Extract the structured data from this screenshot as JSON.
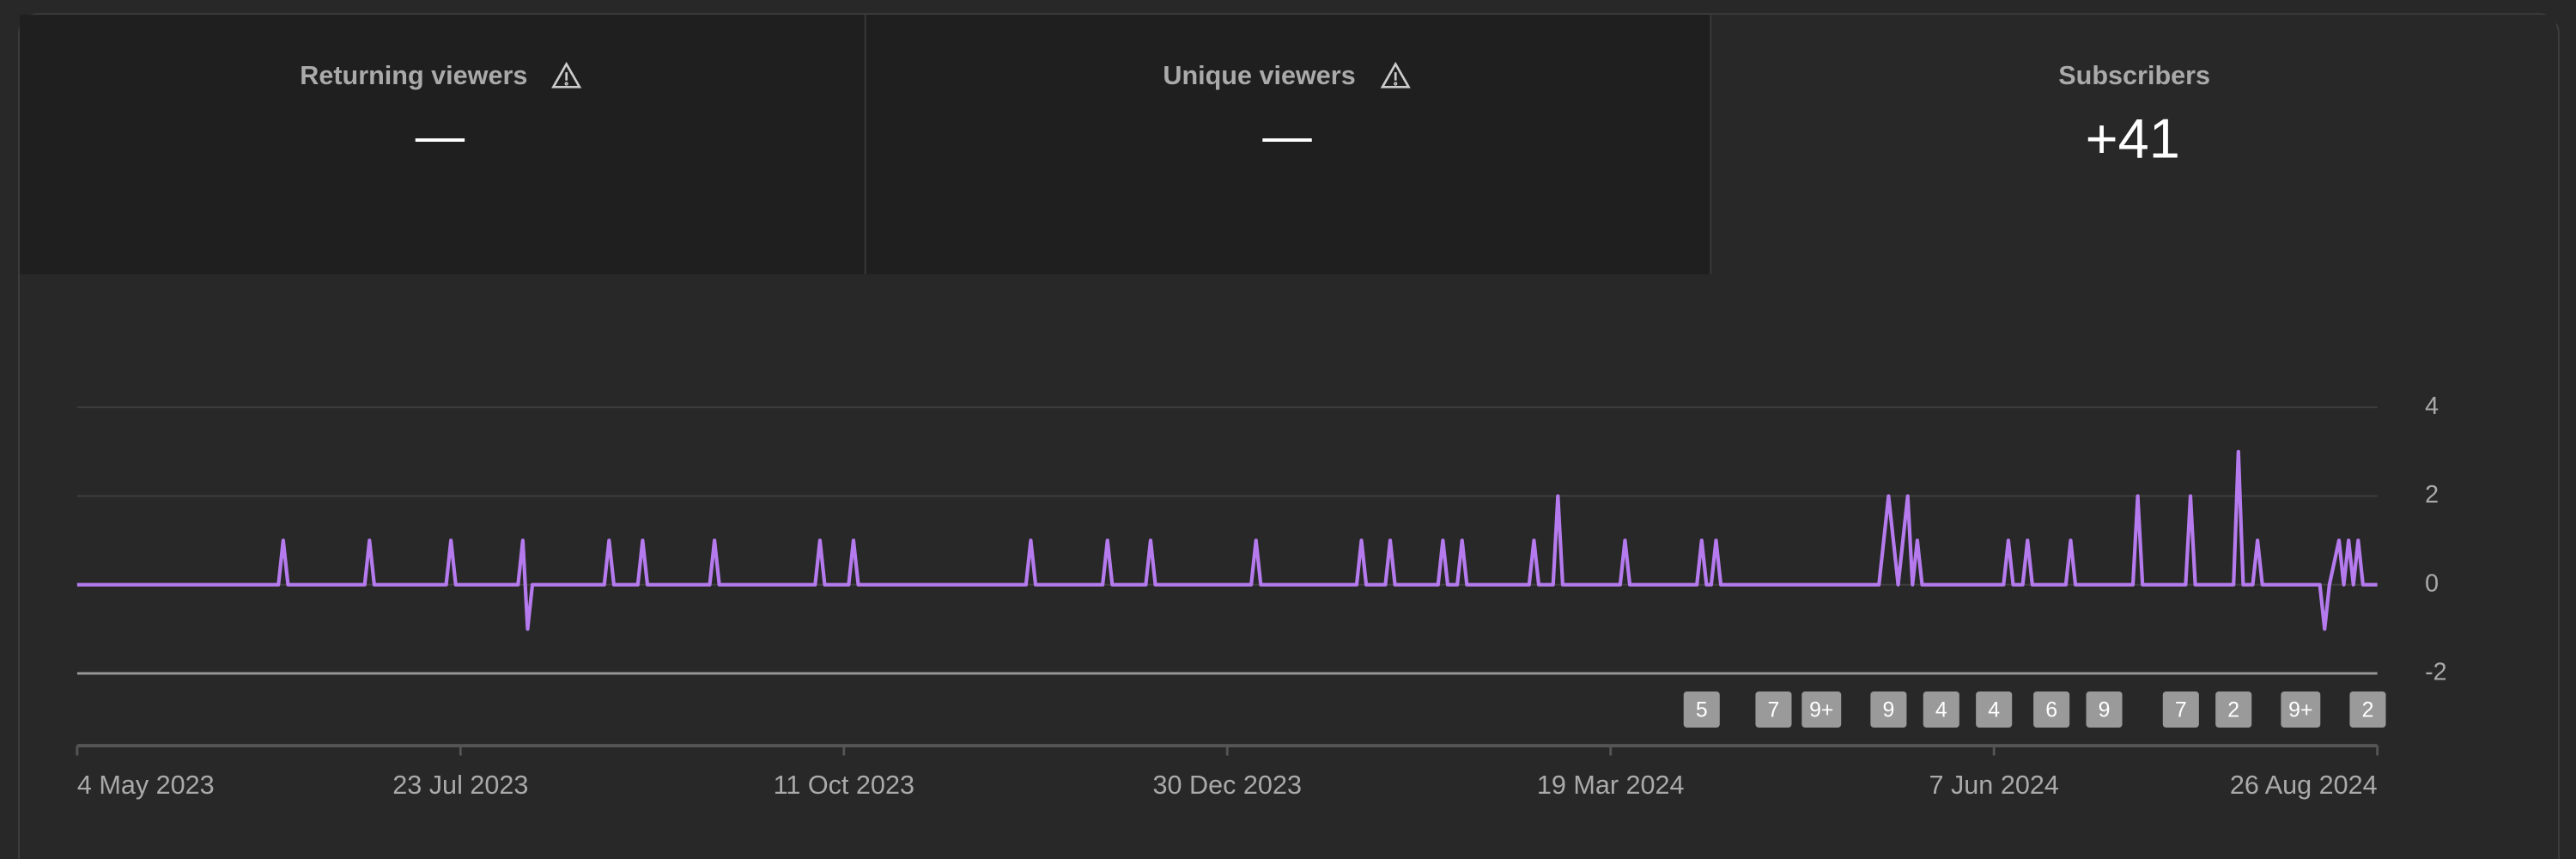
{
  "tabs": [
    {
      "label": "Returning viewers",
      "value": "—"
    },
    {
      "label": "Unique viewers",
      "value": "—"
    },
    {
      "label": "Subscribers",
      "value": "+41"
    }
  ],
  "chart_data": {
    "type": "line",
    "color": "#b57bee",
    "x": [
      "2023-05-04",
      "2023-06-15",
      "2023-06-16",
      "2023-06-17",
      "2023-07-03",
      "2023-07-04",
      "2023-07-05",
      "2023-07-20",
      "2023-07-21",
      "2023-07-22",
      "2023-08-04",
      "2023-08-05",
      "2023-08-06",
      "2023-08-07",
      "2023-08-22",
      "2023-08-23",
      "2023-08-24",
      "2023-08-29",
      "2023-08-30",
      "2023-08-31",
      "2023-09-13",
      "2023-09-14",
      "2023-09-15",
      "2023-10-05",
      "2023-10-06",
      "2023-10-07",
      "2023-10-12",
      "2023-10-13",
      "2023-10-14",
      "2023-11-18",
      "2023-11-19",
      "2023-11-20",
      "2023-12-04",
      "2023-12-05",
      "2023-12-06",
      "2023-12-13",
      "2023-12-14",
      "2023-12-15",
      "2024-01-04",
      "2024-01-05",
      "2024-01-06",
      "2024-01-26",
      "2024-01-27",
      "2024-01-28",
      "2024-02-01",
      "2024-02-02",
      "2024-02-03",
      "2024-02-12",
      "2024-02-13",
      "2024-02-14",
      "2024-02-16",
      "2024-02-17",
      "2024-02-18",
      "2024-03-02",
      "2024-03-03",
      "2024-03-04",
      "2024-03-07",
      "2024-03-08",
      "2024-03-09",
      "2024-03-21",
      "2024-03-22",
      "2024-03-23",
      "2024-04-06",
      "2024-04-07",
      "2024-04-08",
      "2024-04-09",
      "2024-04-10",
      "2024-04-11",
      "2024-05-14",
      "2024-05-16",
      "2024-05-18",
      "2024-05-20",
      "2024-05-21",
      "2024-05-22",
      "2024-05-23",
      "2024-06-09",
      "2024-06-10",
      "2024-06-11",
      "2024-06-13",
      "2024-06-14",
      "2024-06-15",
      "2024-06-22",
      "2024-06-23",
      "2024-06-24",
      "2024-07-06",
      "2024-07-07",
      "2024-07-08",
      "2024-07-17",
      "2024-07-18",
      "2024-07-19",
      "2024-07-27",
      "2024-07-28",
      "2024-07-29",
      "2024-07-31",
      "2024-08-01",
      "2024-08-02",
      "2024-08-14",
      "2024-08-15",
      "2024-08-16",
      "2024-08-18",
      "2024-08-19",
      "2024-08-20",
      "2024-08-21",
      "2024-08-22",
      "2024-08-23",
      "2024-08-26"
    ],
    "values": [
      0,
      0,
      1,
      0,
      0,
      1,
      0,
      0,
      1,
      0,
      0,
      1,
      -1,
      0,
      0,
      1,
      0,
      0,
      1,
      0,
      0,
      1,
      0,
      0,
      1,
      0,
      0,
      1,
      0,
      0,
      1,
      0,
      0,
      1,
      0,
      0,
      1,
      0,
      0,
      1,
      0,
      0,
      1,
      0,
      0,
      1,
      0,
      0,
      1,
      0,
      0,
      1,
      0,
      0,
      1,
      0,
      0,
      2,
      0,
      0,
      1,
      0,
      0,
      1,
      0,
      0,
      1,
      0,
      0,
      2,
      0,
      2,
      0,
      1,
      0,
      0,
      1,
      0,
      0,
      1,
      0,
      0,
      1,
      0,
      0,
      2,
      0,
      0,
      2,
      0,
      0,
      3,
      0,
      0,
      1,
      0,
      0,
      -1,
      0,
      1,
      0,
      1,
      0,
      1,
      0,
      0
    ],
    "xlim": [
      "2023-05-04",
      "2024-08-26"
    ],
    "xticks": [
      {
        "value": "2023-05-04",
        "label": "4 May 2023"
      },
      {
        "value": "2023-07-23",
        "label": "23 Jul 2023"
      },
      {
        "value": "2023-10-11",
        "label": "11 Oct 2023"
      },
      {
        "value": "2023-12-30",
        "label": "30 Dec 2023"
      },
      {
        "value": "2024-03-19",
        "label": "19 Mar 2024"
      },
      {
        "value": "2024-06-07",
        "label": "7 Jun 2024"
      },
      {
        "value": "2024-08-26",
        "label": "26 Aug 2024"
      }
    ],
    "ylim": [
      -2,
      4
    ],
    "yticks": [
      -2,
      0,
      2,
      4
    ],
    "grid": true,
    "markers": [
      {
        "x": "2024-04-07",
        "label": "5"
      },
      {
        "x": "2024-04-22",
        "label": "7"
      },
      {
        "x": "2024-05-02",
        "label": "9+"
      },
      {
        "x": "2024-05-16",
        "label": "9"
      },
      {
        "x": "2024-05-27",
        "label": "4"
      },
      {
        "x": "2024-06-07",
        "label": "4"
      },
      {
        "x": "2024-06-19",
        "label": "6"
      },
      {
        "x": "2024-06-30",
        "label": "9"
      },
      {
        "x": "2024-07-16",
        "label": "7"
      },
      {
        "x": "2024-07-27",
        "label": "2"
      },
      {
        "x": "2024-08-10",
        "label": "9+"
      },
      {
        "x": "2024-08-24",
        "label": "2"
      }
    ]
  }
}
